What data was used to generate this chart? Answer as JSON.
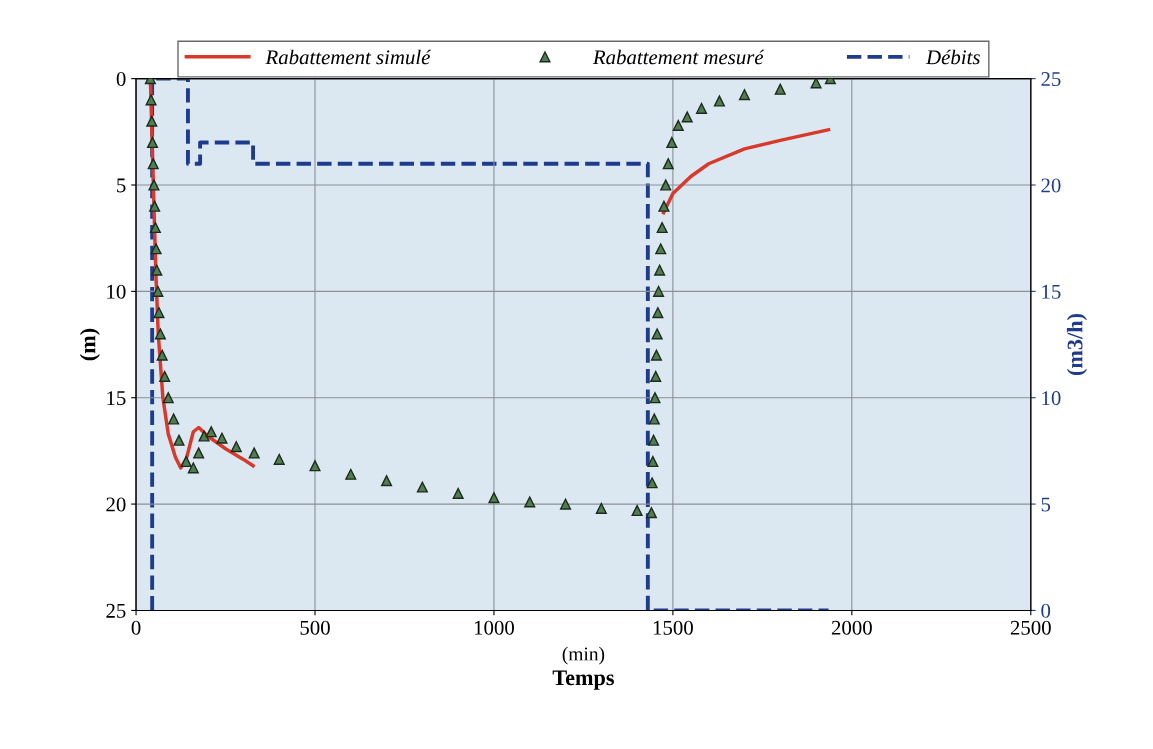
{
  "chart_data": {
    "type": "line",
    "xlabel": "Temps",
    "ylabel": "(m)",
    "y2label": "(m3/h)",
    "annotations": [
      "(min)"
    ],
    "xlim": [
      0,
      2500
    ],
    "xticks": [
      0,
      500,
      1000,
      1500,
      2000,
      2500
    ],
    "ylim": [
      25,
      0
    ],
    "yticks": [
      0,
      5,
      10,
      15,
      20,
      25
    ],
    "y2lim": [
      0,
      25
    ],
    "y2ticks": [
      0,
      5,
      10,
      15,
      20,
      25
    ],
    "grid": true,
    "legend": "top",
    "series": [
      {
        "name": "Rabattement simulé",
        "color": "#d9392b",
        "line_style": "solid",
        "marker": "none",
        "x": [
          40,
          45,
          50,
          55,
          62,
          75,
          90,
          110,
          125,
          140,
          160,
          175,
          200,
          250,
          300,
          327,
          900,
          1474,
          1500,
          1550,
          1600,
          1700,
          1800,
          1935
        ],
        "values": [
          0,
          3,
          6,
          9,
          12,
          15,
          16.7,
          17.8,
          18.3,
          17.9,
          16.6,
          16.4,
          16.8,
          17.4,
          17.9,
          18.2,
          null,
          6.3,
          5.4,
          4.6,
          4.0,
          3.3,
          2.9,
          2.4
        ]
      },
      {
        "name": "Rabattement mesuré",
        "type": "scatter",
        "color": "#1e2a1e",
        "marker": "triangle",
        "x": [
          40,
          42,
          44,
          46,
          48,
          50,
          52,
          54,
          56,
          58,
          61,
          64,
          68,
          73,
          80,
          90,
          105,
          120,
          140,
          160,
          175,
          190,
          210,
          240,
          280,
          330,
          400,
          500,
          600,
          700,
          800,
          900,
          1000,
          1100,
          1200,
          1300,
          1400,
          1440,
          1442,
          1444,
          1446,
          1448,
          1450,
          1452,
          1454,
          1456,
          1458,
          1460,
          1463,
          1466,
          1470,
          1475,
          1480,
          1487,
          1497,
          1515,
          1540,
          1580,
          1630,
          1700,
          1800,
          1900,
          1940
        ],
        "values": [
          0,
          1,
          2,
          3,
          4,
          5,
          6,
          7,
          8,
          9,
          10,
          11,
          12,
          13,
          14,
          15,
          16,
          17,
          18,
          18.3,
          17.6,
          16.8,
          16.6,
          16.9,
          17.3,
          17.6,
          17.9,
          18.2,
          18.6,
          18.9,
          19.2,
          19.5,
          19.7,
          19.9,
          20.0,
          20.2,
          20.3,
          20.4,
          19,
          18,
          17,
          16,
          15,
          14,
          13,
          12,
          11,
          10,
          9,
          8,
          7,
          6,
          5,
          4,
          3,
          2.2,
          1.8,
          1.4,
          1.05,
          0.75,
          0.5,
          0.2,
          0
        ]
      },
      {
        "name": "Débits",
        "type": "step",
        "axis": "y2",
        "color": "#1f3c8c",
        "line_style": "dashed",
        "marker": "none",
        "x": [
          45,
          45,
          145,
          179,
          327,
          1430,
          1935
        ],
        "values": [
          0,
          25,
          21,
          22,
          21,
          0,
          0
        ]
      }
    ]
  }
}
